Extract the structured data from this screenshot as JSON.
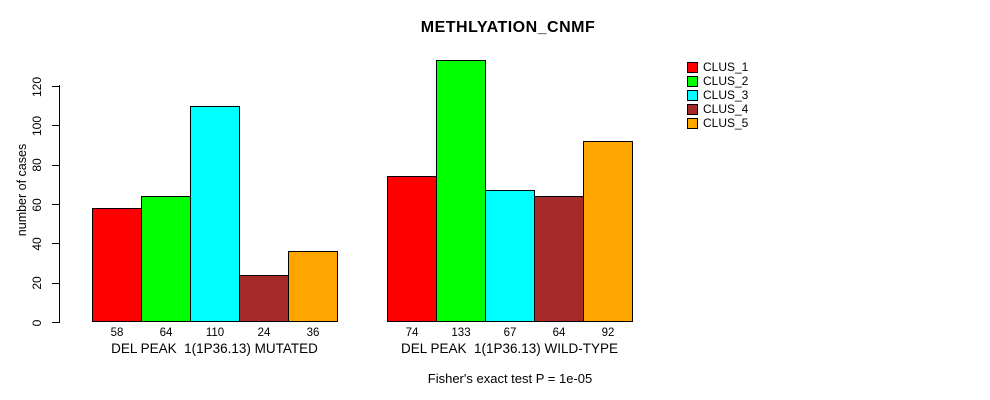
{
  "figure": {
    "background_color": "#FFFFFF",
    "text_color": "#000000"
  },
  "chart_data": {
    "type": "bar",
    "title": "METHLYATION_CNMF",
    "ylabel": "number of cases",
    "xlabel": "",
    "footnote": "Fisher's exact test P = 1e-05",
    "ylim": [
      0,
      120
    ],
    "yticks": [
      0,
      20,
      40,
      60,
      80,
      100,
      120
    ],
    "grid": false,
    "value_labels_shown": true,
    "legend_position": "right",
    "categories": [
      "DEL PEAK  1(1P36.13) MUTATED",
      "DEL PEAK  1(1P36.13) WILD-TYPE"
    ],
    "series": [
      {
        "name": "CLUS_1",
        "color": "#FF0000",
        "values": [
          58,
          74
        ]
      },
      {
        "name": "CLUS_2",
        "color": "#00FF00",
        "values": [
          64,
          133
        ]
      },
      {
        "name": "CLUS_3",
        "color": "#00FFFF",
        "values": [
          110,
          67
        ]
      },
      {
        "name": "CLUS_4",
        "color": "#A52A2A",
        "values": [
          24,
          64
        ]
      },
      {
        "name": "CLUS_5",
        "color": "#FFA500",
        "values": [
          36,
          92
        ]
      }
    ]
  }
}
